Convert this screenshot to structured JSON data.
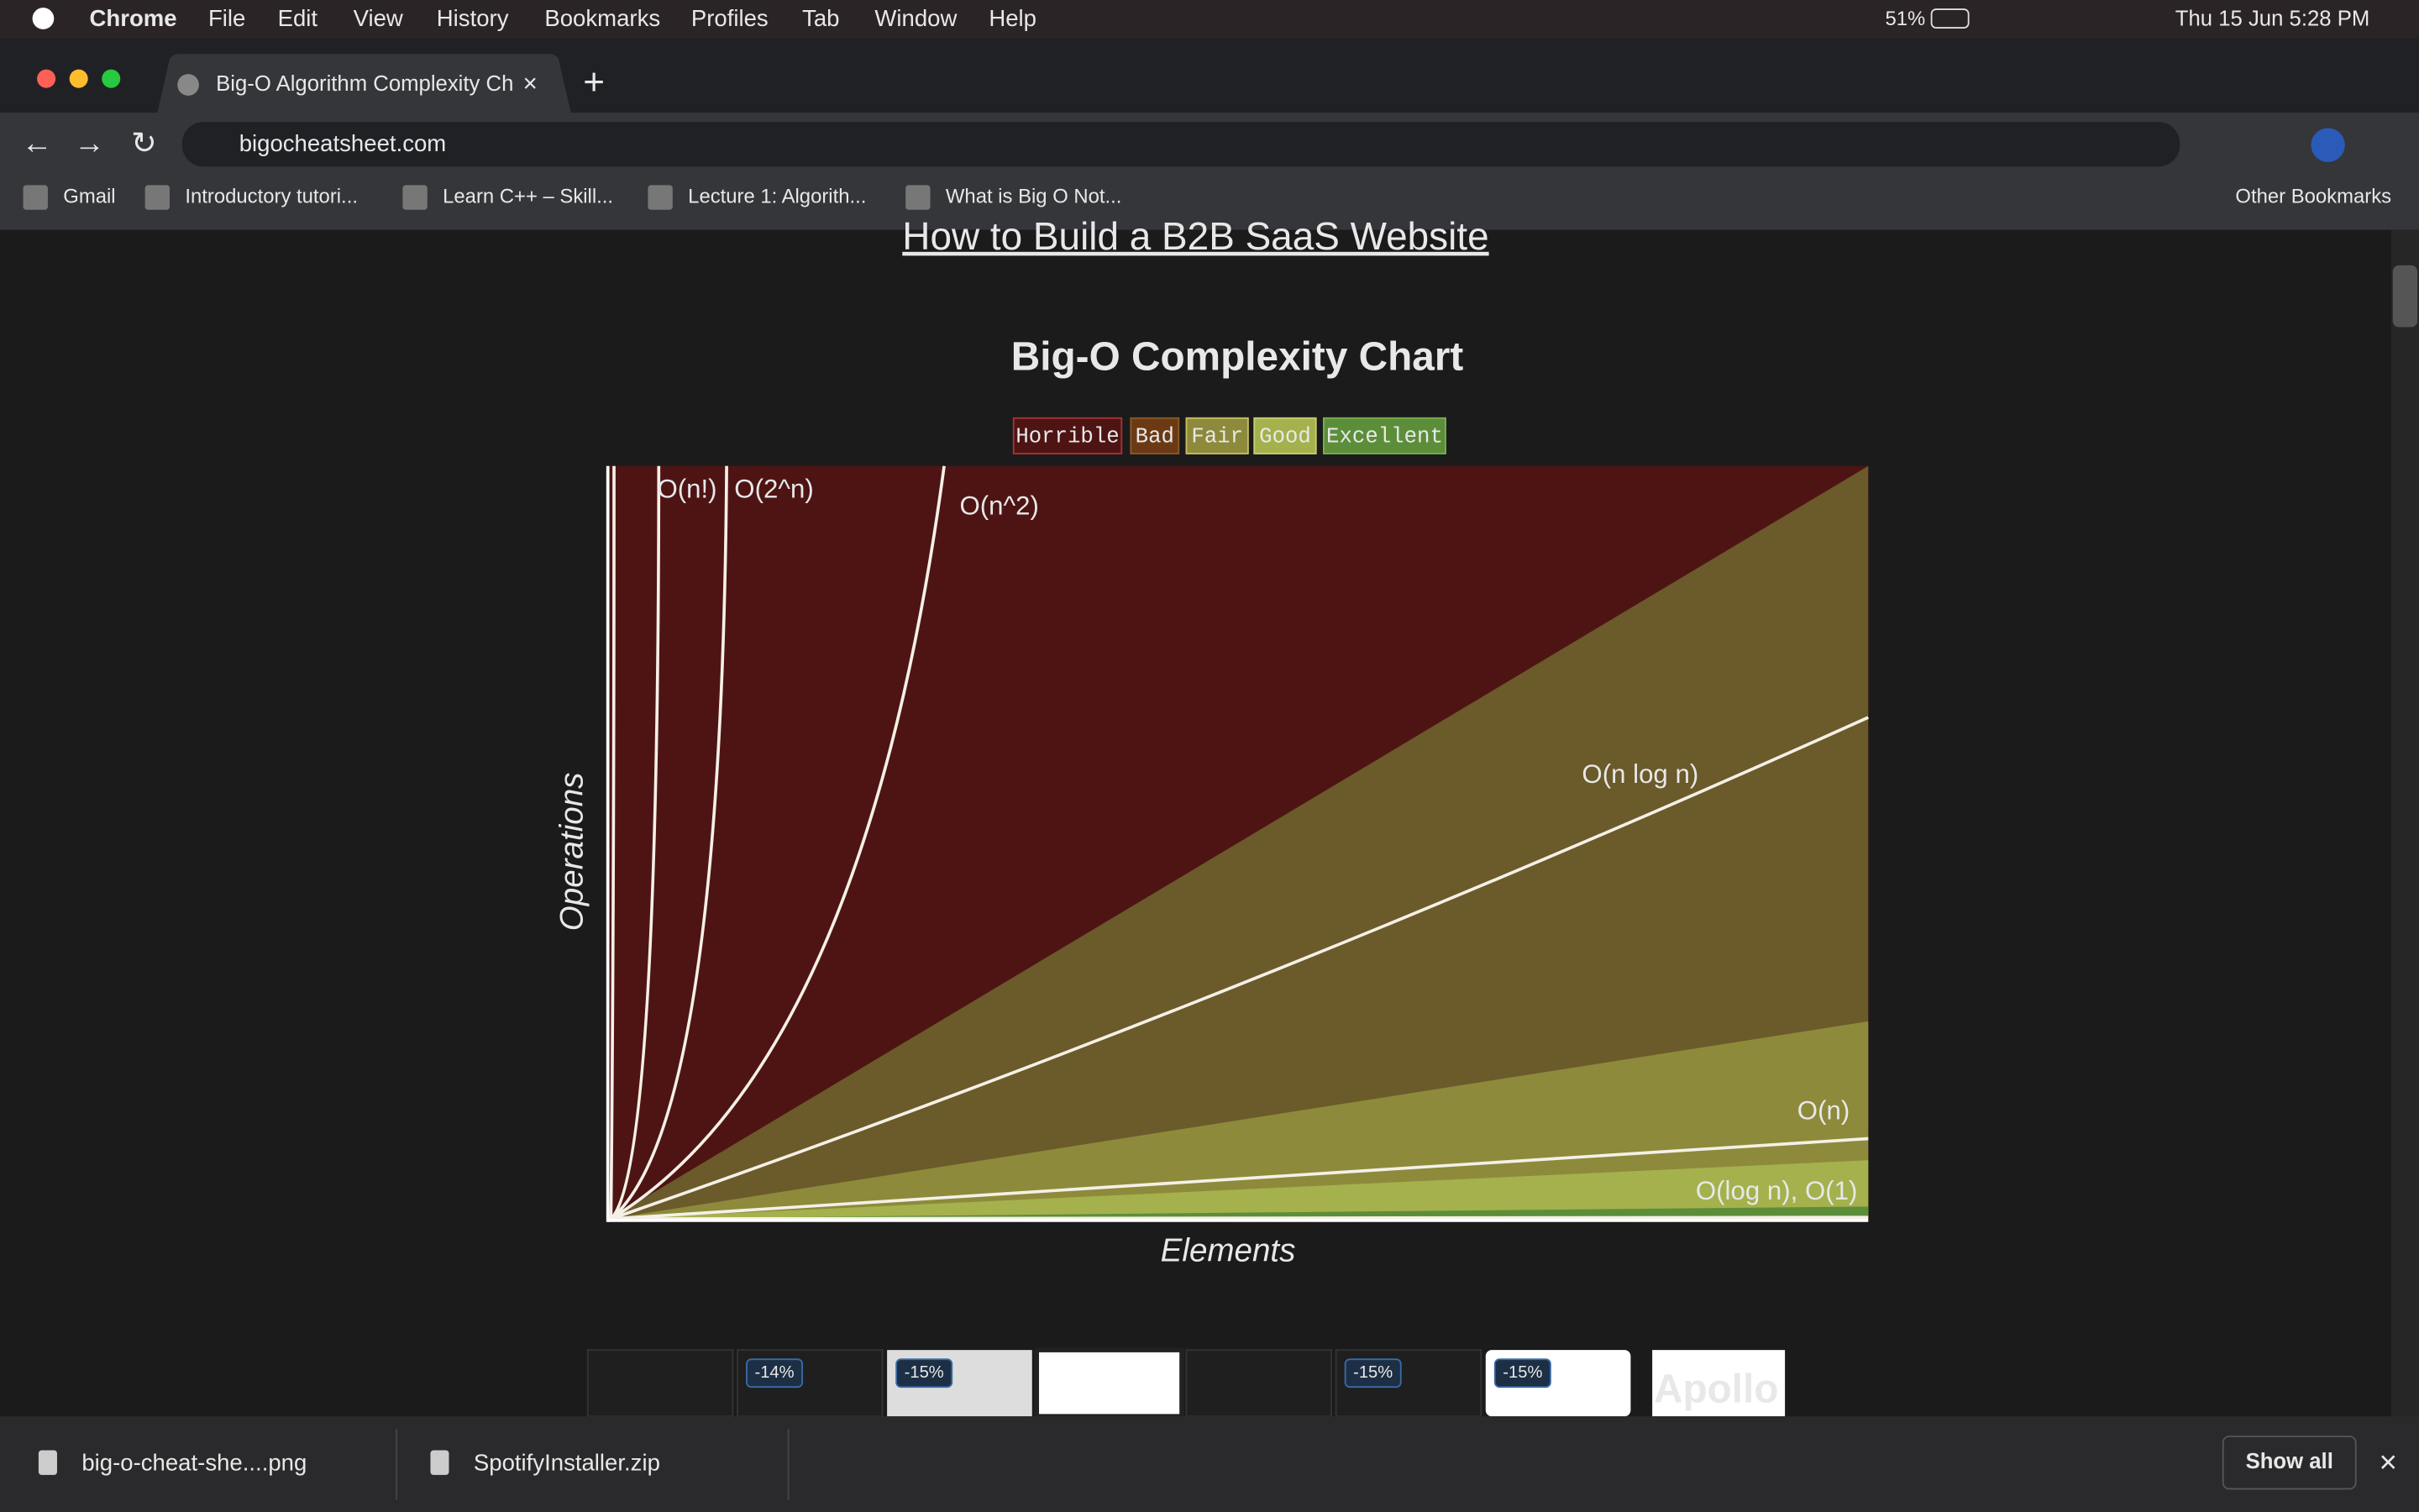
{
  "menubar": {
    "app": "Chrome",
    "menus": [
      "File",
      "Edit",
      "View",
      "History",
      "Bookmarks",
      "Profiles",
      "Tab",
      "Window",
      "Help"
    ],
    "battery": "51%",
    "clock": "Thu 15 Jun  5:28 PM"
  },
  "tab": {
    "title": "Big-O Algorithm Complexity Ch"
  },
  "address": {
    "url": "bigocheatsheet.com"
  },
  "bookmarks": [
    "Gmail",
    "Introductory tutori...",
    "Learn C++ – Skill...",
    "Lecture 1: Algorith...",
    "What is Big O Not..."
  ],
  "other_bookmarks": "Other Bookmarks",
  "page": {
    "link": "How to Build a B2B SaaS Website",
    "chart_title": "Big-O Complexity Chart",
    "legend": [
      "Horrible",
      "Bad",
      "Fair",
      "Good",
      "Excellent"
    ],
    "curve_labels": [
      "O(n!)",
      "O(2^n)",
      "O(n^2)",
      "O(n log n)",
      "O(n)",
      "O(log n), O(1)"
    ],
    "y_label": "Operations",
    "x_label": "Elements",
    "ad_badges": [
      "-14%",
      "-15%",
      "-15%",
      "-15%"
    ],
    "ad_brand": "Apollo"
  },
  "downloads": {
    "files": [
      "big-o-cheat-she....png",
      "SpotifyInstaller.zip"
    ],
    "show_all": "Show all"
  }
}
